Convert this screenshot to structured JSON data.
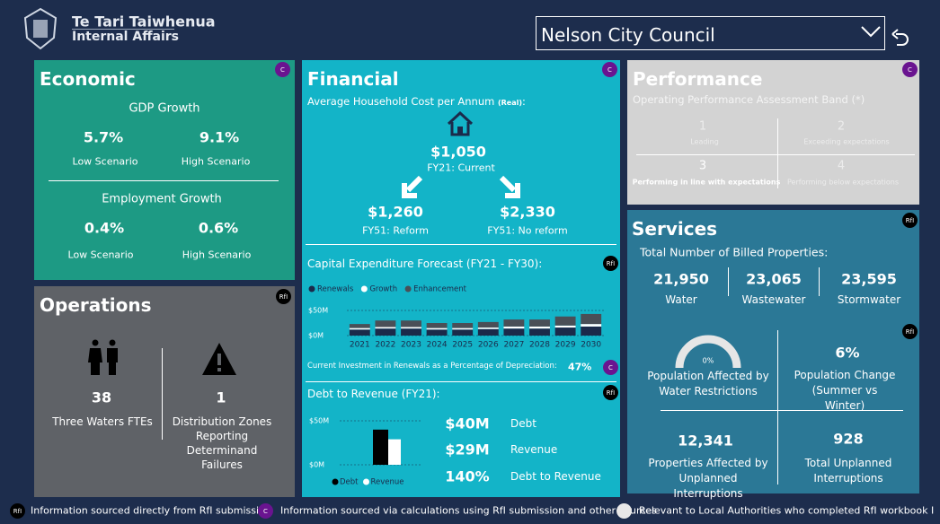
{
  "header": {
    "org_line1": "Te Tari Taiwhenua",
    "org_line2": "Internal Affairs",
    "dropdown": "Nelson City Council"
  },
  "economic": {
    "title": "Economic",
    "badge": "C",
    "gdp": {
      "label": "GDP Growth",
      "low": "5.7%",
      "low_label": "Low Scenario",
      "high": "9.1%",
      "high_label": "High Scenario"
    },
    "employment": {
      "label": "Employment Growth",
      "low": "0.4%",
      "low_label": "Low Scenario",
      "high": "0.6%",
      "high_label": "High Scenario"
    }
  },
  "operations": {
    "title": "Operations",
    "badge": "RfI",
    "ftes": {
      "value": "38",
      "label": "Three Waters FTEs"
    },
    "zones": {
      "value": "1",
      "label": "Distribution Zones Reporting Determinand Failures"
    }
  },
  "financial": {
    "title": "Financial",
    "badge": "C",
    "household": {
      "label": "Average Household Cost per Annum",
      "label_suffix": "(Real)",
      "colon": ":",
      "current": "$1,050",
      "current_label": "FY21: Current",
      "reform": "$1,260",
      "reform_label": "FY51: Reform",
      "no_reform": "$2,330",
      "no_reform_label": "FY51: No reform"
    },
    "capex": {
      "title": "Capital Expenditure Forecast (FY21 - FY30):",
      "badge": "RfI",
      "chart": {
        "type": "bar",
        "stacked": true,
        "categories": [
          "2021",
          "2022",
          "2023",
          "2024",
          "2025",
          "2026",
          "2027",
          "2028",
          "2029",
          "2030"
        ],
        "series": [
          {
            "name": "Renewals",
            "color": "#1b2a4a",
            "values": [
              12,
              14,
              14,
              12,
              12,
              13,
              14,
              14,
              16,
              18
            ]
          },
          {
            "name": "Growth",
            "color": "#ffffff",
            "values": [
              3,
              3,
              3,
              3,
              3,
              3,
              4,
              4,
              4,
              5
            ]
          },
          {
            "name": "Enhancement",
            "color": "#4a4f57",
            "values": [
              8,
              13,
              13,
              10,
              10,
              11,
              14,
              14,
              18,
              20
            ]
          }
        ],
        "ylim": [
          0,
          55
        ],
        "yticks": [
          {
            "value": 0,
            "label": "$0M"
          },
          {
            "value": 50,
            "label": "$50M"
          }
        ]
      },
      "renewals_note": "Current Investment in Renewals as a Percentage of Depreciation:",
      "renewals_pct": "47%",
      "renewals_badge": "C"
    },
    "debt": {
      "title": "Debt to Revenue (FY21):",
      "badge": "RfI",
      "chart": {
        "type": "bar",
        "categories": [
          "Debt",
          "Revenue"
        ],
        "values": [
          40,
          29
        ],
        "colors": [
          "#000000",
          "#ffffff"
        ],
        "ylim": [
          0,
          55
        ],
        "yticks": [
          {
            "value": 0,
            "label": "$0M"
          },
          {
            "value": 50,
            "label": "$50M"
          }
        ]
      },
      "stats": [
        {
          "value": "$40M",
          "label": "Debt"
        },
        {
          "value": "$29M",
          "label": "Revenue"
        },
        {
          "value": "140%",
          "label": "Debt to Revenue"
        }
      ]
    }
  },
  "performance": {
    "title": "Performance",
    "subtitle": "Operating Performance Assessment Band (*)",
    "badge": "C",
    "bands": [
      {
        "number": "1",
        "label": "Leading"
      },
      {
        "number": "2",
        "label": "Exceeding expectations"
      },
      {
        "number": "3",
        "label": "Performing in line with expectations"
      },
      {
        "number": "4",
        "label": "Performing below expectations"
      }
    ]
  },
  "services": {
    "title": "Services",
    "badge": "RfI",
    "billed_label": "Total Number of Billed Properties:",
    "billed": [
      {
        "value": "21,950",
        "label": "Water"
      },
      {
        "value": "23,065",
        "label": "Wastewater"
      },
      {
        "value": "23,595",
        "label": "Stormwater"
      }
    ],
    "badge2": "RfI",
    "quad": [
      {
        "value": "0%",
        "label": "Population Affected by Water Restrictions"
      },
      {
        "value": "6%",
        "label": "Population Change (Summer vs Winter)"
      },
      {
        "value": "12,341",
        "label": "Properties Affected by Unplanned Interruptions"
      },
      {
        "value": "928",
        "label": "Total Unplanned Interruptions"
      }
    ]
  },
  "footer": {
    "rfi_badge": "RfI",
    "rfi_text": "Information sourced directly from RfI submission",
    "c_badge": "C",
    "c_text": "Information sourced via calculations using RfI submission and other sources",
    "star_text": "Relevant to Local Authorities who completed RfI workbook I"
  }
}
